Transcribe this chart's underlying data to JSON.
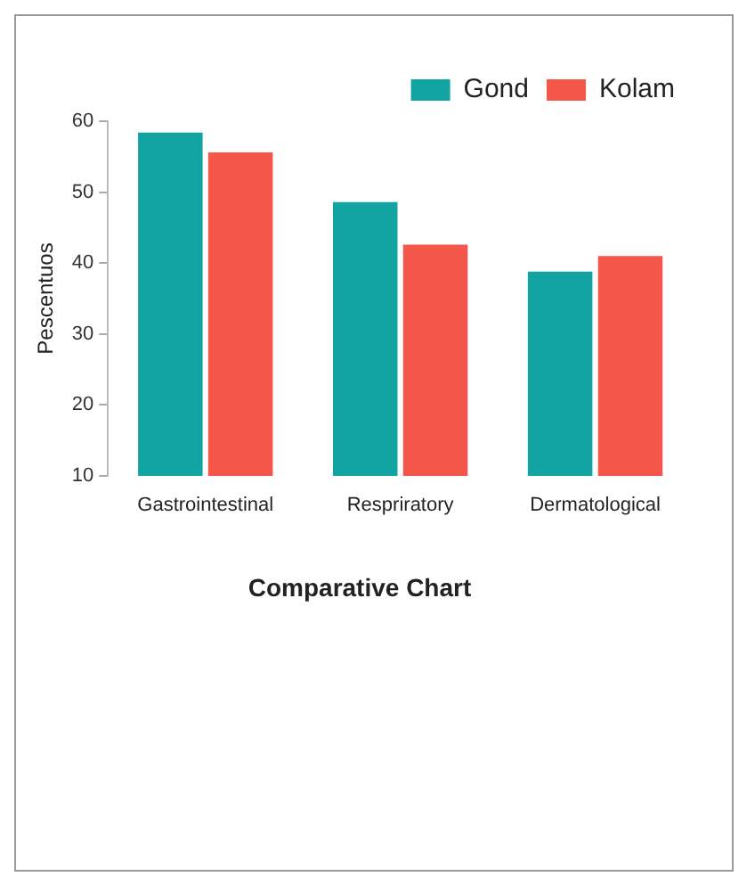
{
  "chart_data": {
    "type": "bar",
    "title": "Comparative Chart",
    "ylabel": "Pescentuos",
    "categories": [
      "Gastrointestinal",
      "Respriratory",
      "Dermatological"
    ],
    "series": [
      {
        "name": "Gond",
        "color": "#12a3a3",
        "values": [
          58.4,
          48.6,
          38.8
        ]
      },
      {
        "name": "Kolam",
        "color": "#f4574a",
        "values": [
          55.6,
          42.6,
          41.0
        ]
      }
    ],
    "ylim": [
      10,
      60
    ],
    "yticks": [
      10,
      20,
      30,
      40,
      50,
      60
    ],
    "grid": false,
    "legend": "top right"
  }
}
